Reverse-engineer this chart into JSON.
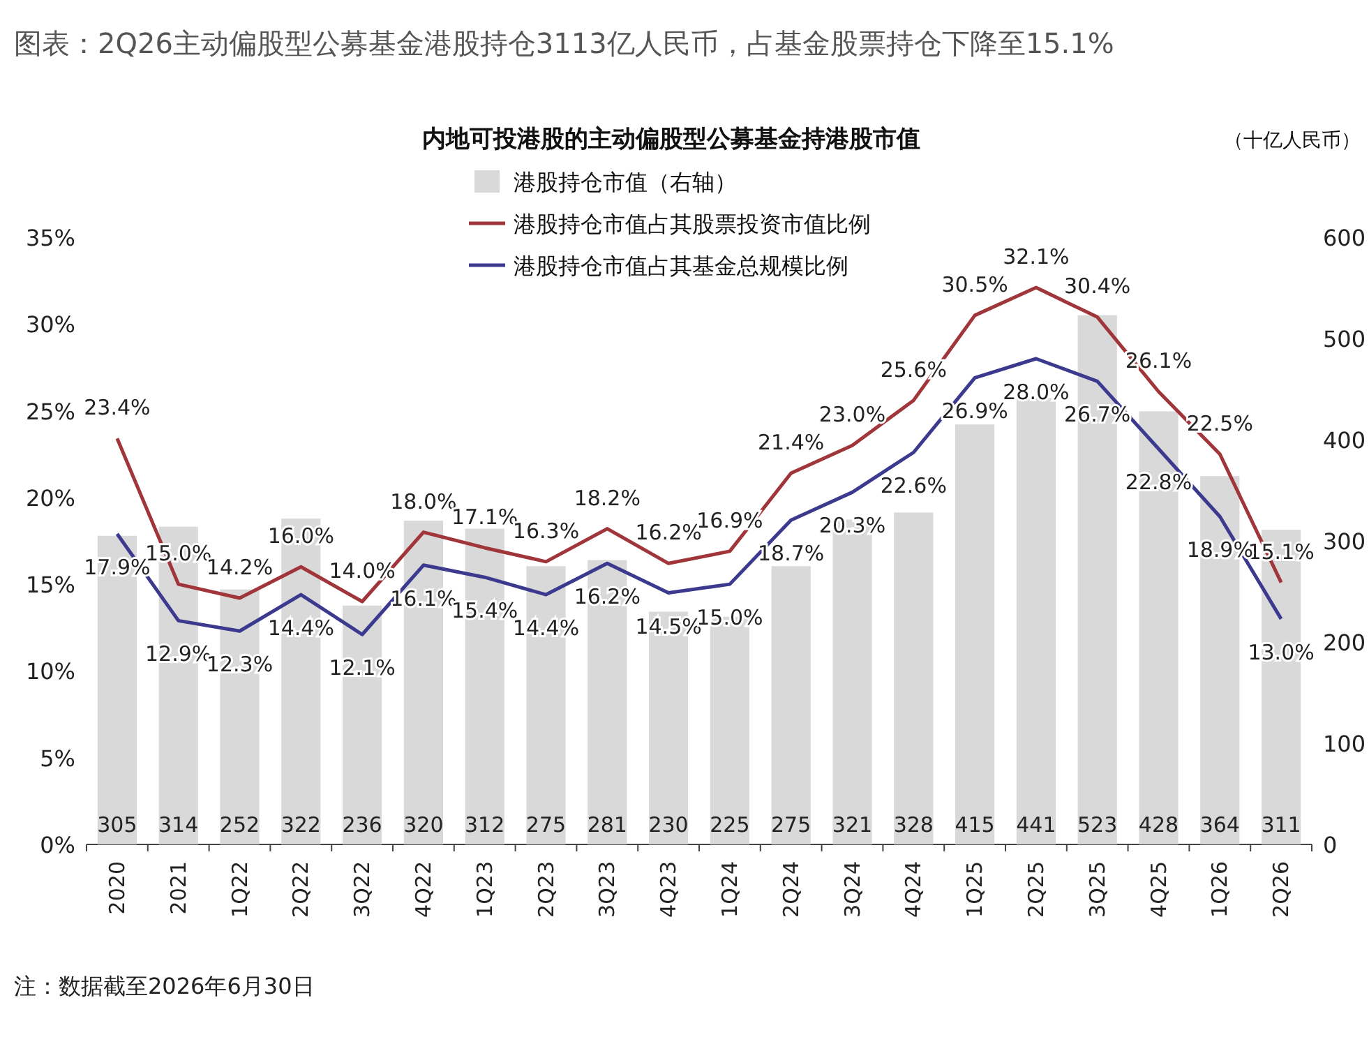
{
  "chart_data": {
    "type": "bar",
    "title": "图表：2Q26主动偏股型公募基金港股持仓3113亿人民币，占基金股票持仓下降至15.1%",
    "subtitle": "内地可投港股的主动偏股型公募基金持港股市值",
    "y2label": "（十亿人民币）",
    "annotations": [
      "注：数据截至2026年6月30日"
    ],
    "categories": [
      "2020",
      "2021",
      "1Q22",
      "2Q22",
      "3Q22",
      "4Q22",
      "1Q23",
      "2Q23",
      "3Q23",
      "4Q23",
      "1Q24",
      "2Q24",
      "3Q24",
      "4Q24",
      "1Q25",
      "2Q25",
      "3Q25",
      "4Q25",
      "1Q26",
      "2Q26"
    ],
    "series": [
      {
        "name": "港股持仓市值（右轴）",
        "type": "bar",
        "axis": "y2",
        "color": "#d9d9d9",
        "values": [
          305,
          314,
          252,
          322,
          236,
          320,
          312,
          275,
          281,
          230,
          225,
          275,
          321,
          328,
          415,
          441,
          523,
          428,
          364,
          311
        ],
        "value_labels": [
          "305",
          "314",
          "252",
          "322",
          "236",
          "320",
          "312",
          "275",
          "281",
          "230",
          "225",
          "275",
          "321",
          "328",
          "415",
          "441",
          "523",
          "428",
          "364",
          "311"
        ]
      },
      {
        "name": "港股持仓市值占其股票投资市值比例",
        "type": "line",
        "color": "#a0353a",
        "values": [
          23.4,
          15.0,
          14.2,
          16.0,
          14.0,
          18.0,
          17.1,
          16.3,
          18.2,
          16.2,
          16.9,
          21.4,
          23.0,
          25.6,
          30.5,
          32.1,
          30.4,
          26.1,
          22.5,
          15.1
        ],
        "value_labels": [
          "23.4%",
          "15.0%",
          "14.2%",
          "16.0%",
          "14.0%",
          "18.0%",
          "17.1%",
          "16.3%",
          "18.2%",
          "16.2%",
          "16.9%",
          "21.4%",
          "23.0%",
          "25.6%",
          "30.5%",
          "32.1%",
          "30.4%",
          "26.1%",
          "22.5%",
          "15.1%"
        ]
      },
      {
        "name": "港股持仓市值占其基金总规模比例",
        "type": "line",
        "color": "#3b3a8e",
        "values": [
          17.9,
          12.9,
          12.3,
          14.4,
          12.1,
          16.1,
          15.4,
          14.4,
          16.2,
          14.5,
          15.0,
          18.7,
          20.3,
          22.6,
          26.9,
          28.0,
          26.7,
          22.8,
          18.9,
          13.0
        ],
        "value_labels": [
          "17.9%",
          "12.9%",
          "12.3%",
          "14.4%",
          "12.1%",
          "16.1%",
          "15.4%",
          "14.4%",
          "16.2%",
          "14.5%",
          "15.0%",
          "18.7%",
          "20.3%",
          "22.6%",
          "26.9%",
          "28.0%",
          "26.7%",
          "22.8%",
          "18.9%",
          "13.0%"
        ]
      }
    ],
    "ylim": [
      0,
      35
    ],
    "yticks": [
      {
        "value": 0,
        "label": "0%"
      },
      {
        "value": 5,
        "label": "5%"
      },
      {
        "value": 10,
        "label": "10%"
      },
      {
        "value": 15,
        "label": "15%"
      },
      {
        "value": 20,
        "label": "20%"
      },
      {
        "value": 25,
        "label": "25%"
      },
      {
        "value": 30,
        "label": "30%"
      },
      {
        "value": 35,
        "label": "35%"
      }
    ],
    "y2lim": [
      0,
      600
    ],
    "y2ticks": [
      0,
      100,
      200,
      300,
      400,
      500,
      600
    ],
    "legend": "top left",
    "grid": false,
    "marker": "none"
  }
}
